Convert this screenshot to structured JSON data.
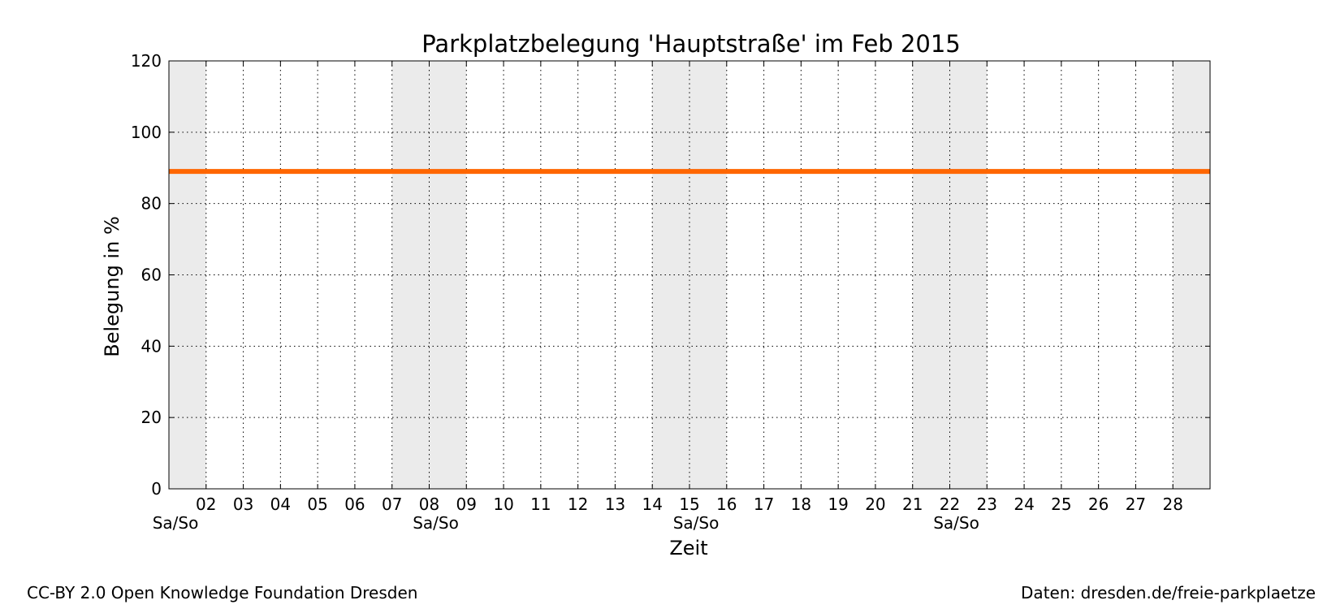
{
  "chart_data": {
    "type": "line",
    "title": "Parkplatzbelegung 'Hauptstraße' im Feb 2015",
    "xlabel": "Zeit",
    "ylabel": "Belegung in %",
    "ylim": [
      0,
      120
    ],
    "yticks": [
      0,
      20,
      40,
      60,
      80,
      100,
      120
    ],
    "xlim": [
      "2015-02-01",
      "2015-03-01"
    ],
    "xtick_labels": [
      "02",
      "03",
      "04",
      "05",
      "06",
      "07",
      "08",
      "09",
      "10",
      "11",
      "12",
      "13",
      "14",
      "15",
      "16",
      "17",
      "18",
      "19",
      "20",
      "21",
      "22",
      "23",
      "24",
      "25",
      "26",
      "27",
      "28"
    ],
    "grid": true,
    "weekend_label": "Sa/So",
    "weekends": [
      {
        "start": "2015-01-31",
        "end": "2015-02-02"
      },
      {
        "start": "2015-02-07",
        "end": "2015-02-09"
      },
      {
        "start": "2015-02-14",
        "end": "2015-02-16"
      },
      {
        "start": "2015-02-21",
        "end": "2015-02-23"
      },
      {
        "start": "2015-02-28",
        "end": "2015-03-01"
      }
    ],
    "weekend_color": "#ebebeb",
    "series": [
      {
        "color": "#ff6600",
        "x": [
          "2015-02-01",
          "2015-03-01"
        ],
        "y": [
          89,
          89
        ]
      }
    ]
  },
  "footer": {
    "left": "CC-BY 2.0 Open Knowledge Foundation Dresden",
    "right": "Daten: dresden.de/freie-parkplaetze"
  }
}
